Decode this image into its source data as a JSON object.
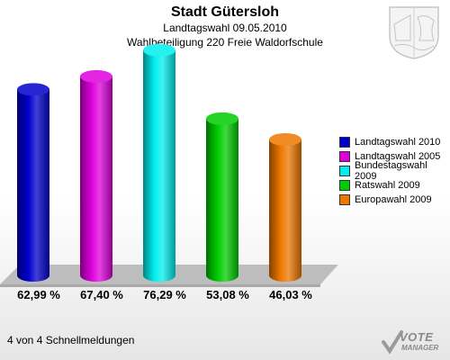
{
  "header": {
    "title": "Stadt Gütersloh",
    "subtitle1": "Landtagswahl 09.05.2010",
    "subtitle2": "Wahlbeteiligung 220 Freie Waldorfschule"
  },
  "footer": {
    "status": "4 von 4 Schnellmeldungen"
  },
  "brand": {
    "line1": "VOTE",
    "line2": "MANAGER"
  },
  "chart_data": {
    "type": "bar",
    "title": "Stadt Gütersloh",
    "categories": [
      "Landtagswahl 2010",
      "Landtagswahl 2005",
      "Bundestagswahl 2009",
      "Ratswahl 2009",
      "Europawahl 2009"
    ],
    "values": [
      62.99,
      67.4,
      76.29,
      53.08,
      46.03
    ],
    "value_labels": [
      "62,99 %",
      "67,40 %",
      "76,29 %",
      "53,08 %",
      "46,03 %"
    ],
    "colors": [
      "#0000cc",
      "#dd00dd",
      "#00eeee",
      "#00cc00",
      "#ee7700"
    ],
    "ylim": [
      0,
      80
    ],
    "legend_position": "right",
    "grid": false
  }
}
